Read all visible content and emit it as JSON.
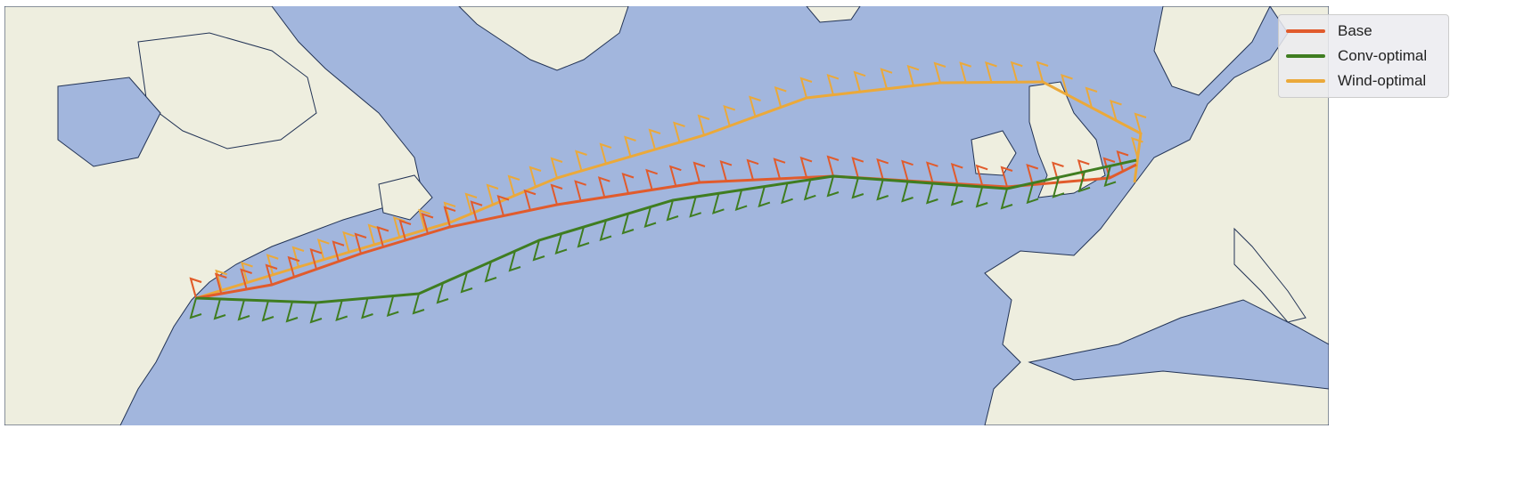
{
  "map": {
    "ocean_color": "#a2b6dd",
    "land_color": "#eeeedf",
    "coast_color": "#223355",
    "border_color": "#8a8a8a"
  },
  "legend": {
    "placement": "top-right",
    "items": [
      {
        "label": "Base",
        "color": "#e15b2c"
      },
      {
        "label": "Conv-optimal",
        "color": "#3f7d20"
      },
      {
        "label": "Wind-optimal",
        "color": "#eba93a"
      }
    ]
  }
}
